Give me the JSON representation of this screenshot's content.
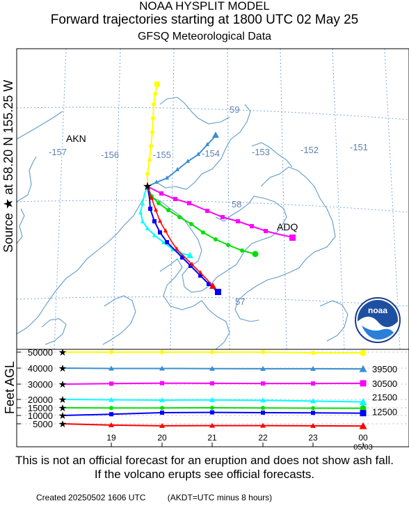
{
  "header": {
    "line1": "NOAA HYSPLIT MODEL",
    "line2": "Forward trajectories starting at 1800 UTC 02 May 25",
    "line3": "GFSQ Meteorological Data"
  },
  "source_label": "Source ★ at 58.20 N 155.25 W",
  "disclaimer": "This is not an official forecast for an eruption and does not show ash fall. If the volcano erupts see official forecasts.",
  "footer": {
    "created": "Created 20250502 1606 UTC",
    "akdt": "(AKDT=UTC minus 8 hours)"
  },
  "logo": {
    "text": "noaa"
  },
  "map": {
    "place_labels": [
      "AKN",
      "ADQ"
    ],
    "longitude_labels": [
      "-157",
      "-156",
      "-155",
      "-154",
      "-153",
      "-152",
      "-151"
    ],
    "latitude_labels": [
      "59",
      "58",
      "57"
    ]
  },
  "colors": {
    "50000": "#ffff00",
    "40000": "#3a8fd0",
    "30000": "#ff00ff",
    "20000": "#00ffff",
    "15000": "#00e000",
    "10000": "#0000ff",
    "5000": "#ff0000",
    "coast": "#5f9ac8",
    "grid": "#6aa0d0"
  },
  "chart_data": {
    "type": "line",
    "title": "Forward trajectories starting at 1800 UTC 02 May 25",
    "ylabel": "Feet AGL",
    "y_ticks": [
      5000,
      10000,
      15000,
      20000,
      30000,
      40000,
      50000
    ],
    "x_tick_labels": [
      "19",
      "20",
      "21",
      "22",
      "23",
      "00"
    ],
    "x_date_label": "05/03",
    "right_labels": [
      "39500",
      "30500",
      "21500",
      "12500"
    ],
    "series": [
      {
        "start_ft": 50000,
        "values": [
          50000,
          50000,
          50000,
          50000,
          50000,
          49500,
          49500
        ]
      },
      {
        "start_ft": 40000,
        "values": [
          40000,
          39800,
          39800,
          39700,
          39600,
          39600,
          39500
        ]
      },
      {
        "start_ft": 30000,
        "values": [
          30000,
          30300,
          30600,
          30500,
          30400,
          30400,
          30500
        ]
      },
      {
        "start_ft": 20000,
        "values": [
          20000,
          19800,
          19600,
          19700,
          19500,
          19000,
          18500
        ]
      },
      {
        "start_ft": 15000,
        "values": [
          15000,
          14900,
          14900,
          15000,
          14900,
          14800,
          14700
        ]
      },
      {
        "start_ft": 10000,
        "values": [
          10000,
          10800,
          11800,
          12000,
          11800,
          11700,
          11500
        ]
      },
      {
        "start_ft": 5000,
        "values": [
          5000,
          4200,
          3800,
          3900,
          3900,
          3800,
          3700
        ]
      }
    ]
  }
}
